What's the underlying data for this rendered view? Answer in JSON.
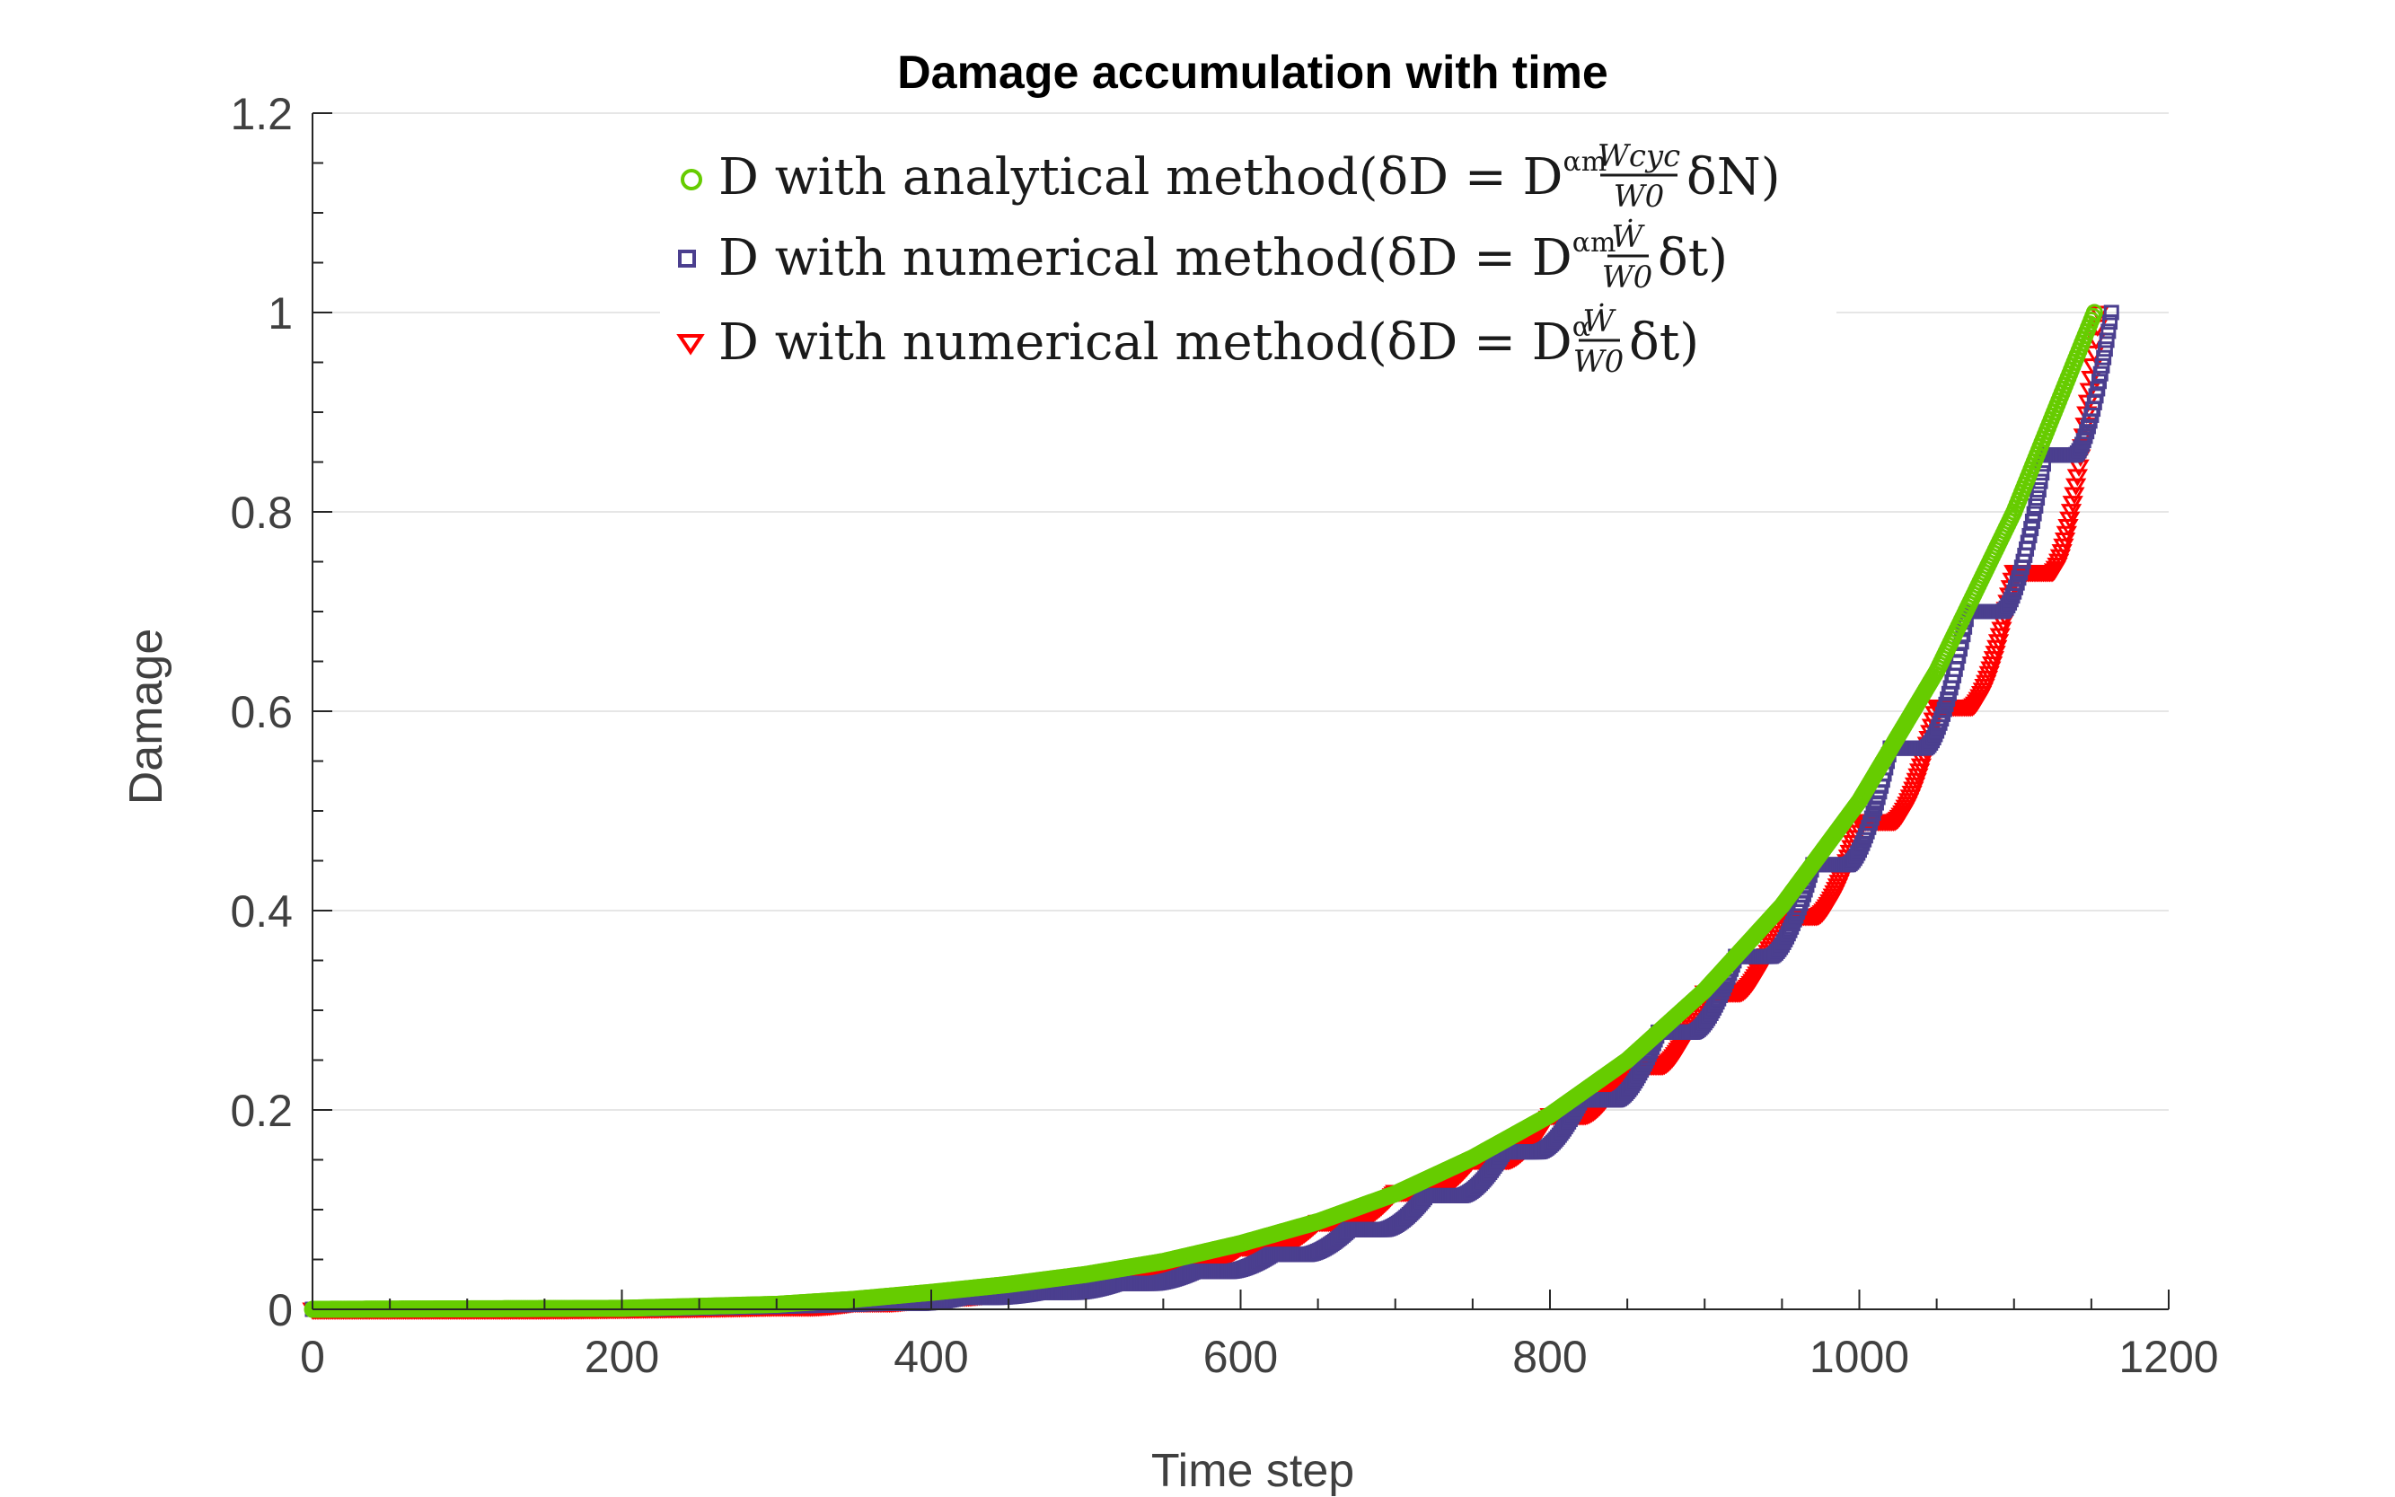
{
  "chart_data": {
    "type": "scatter",
    "title": "Damage accumulation with time",
    "xlabel": "Time step",
    "ylabel": "Damage",
    "xlim": [
      0,
      1200
    ],
    "ylim": [
      0,
      1.2
    ],
    "xticks": [
      "0",
      "200",
      "400",
      "600",
      "800",
      "1000",
      "1200"
    ],
    "yticks": [
      "0",
      "0.2",
      "0.4",
      "0.6",
      "0.8",
      "1",
      "1.2"
    ],
    "grid": "horizontal",
    "legend_position": "top",
    "series": [
      {
        "label_prefix": "D with analytical method",
        "marker": "circle",
        "color": "#66cc00",
        "end_x": 1152,
        "x": [
          0,
          100,
          200,
          250,
          300,
          350,
          400,
          450,
          500,
          550,
          600,
          650,
          700,
          750,
          800,
          850,
          900,
          950,
          1000,
          1050,
          1100,
          1152
        ],
        "y": [
          0,
          0.0005,
          0.001,
          0.003,
          0.005,
          0.01,
          0.017,
          0.025,
          0.035,
          0.048,
          0.066,
          0.088,
          0.116,
          0.152,
          0.195,
          0.25,
          0.32,
          0.405,
          0.51,
          0.64,
          0.8,
          1.0
        ]
      },
      {
        "label_prefix": "D with numerical method",
        "marker": "square",
        "color": "#4b3f8f",
        "end_x": 1163,
        "steps": [
          [
            370,
            0.006
          ],
          [
            420,
            0.012
          ],
          [
            470,
            0.017
          ],
          [
            520,
            0.026
          ],
          [
            570,
            0.038
          ],
          [
            620,
            0.055
          ],
          [
            670,
            0.08
          ],
          [
            720,
            0.114
          ],
          [
            770,
            0.158
          ],
          [
            820,
            0.21
          ],
          [
            870,
            0.278
          ],
          [
            920,
            0.354
          ],
          [
            970,
            0.446
          ],
          [
            1020,
            0.563
          ],
          [
            1070,
            0.7
          ],
          [
            1120,
            0.857
          ],
          [
            1163,
            1.0
          ]
        ]
      },
      {
        "label_prefix": "D with numerical method",
        "marker": "triangle-down",
        "color": "#ff0000",
        "end_x": 1155,
        "steps": [
          [
            300,
            0.003
          ],
          [
            350,
            0.007
          ],
          [
            400,
            0.013
          ],
          [
            450,
            0.02
          ],
          [
            500,
            0.03
          ],
          [
            550,
            0.044
          ],
          [
            600,
            0.063
          ],
          [
            650,
            0.088
          ],
          [
            700,
            0.118
          ],
          [
            750,
            0.15
          ],
          [
            800,
            0.195
          ],
          [
            850,
            0.245
          ],
          [
            900,
            0.318
          ],
          [
            950,
            0.395
          ],
          [
            1000,
            0.49
          ],
          [
            1050,
            0.605
          ],
          [
            1100,
            0.74
          ],
          [
            1155,
            1.0
          ]
        ]
      }
    ]
  },
  "legend": [
    {
      "prefix": "D with analytical method",
      "formula_lead": "(δD = D",
      "sup": "αm",
      "frac_top": "Wcyc",
      "frac_bot": "W0",
      "tail": "δN)"
    },
    {
      "prefix": "D with numerical method",
      "formula_lead": "(δD = D",
      "sup": "αm",
      "frac_top": "Ẇ",
      "frac_bot": "W0",
      "tail": "δt)"
    },
    {
      "prefix": "D with numerical method",
      "formula_lead": "(δD = D",
      "sup": "α",
      "frac_top": "Ẇ",
      "frac_bot": "W0",
      "tail": "δt)"
    }
  ]
}
